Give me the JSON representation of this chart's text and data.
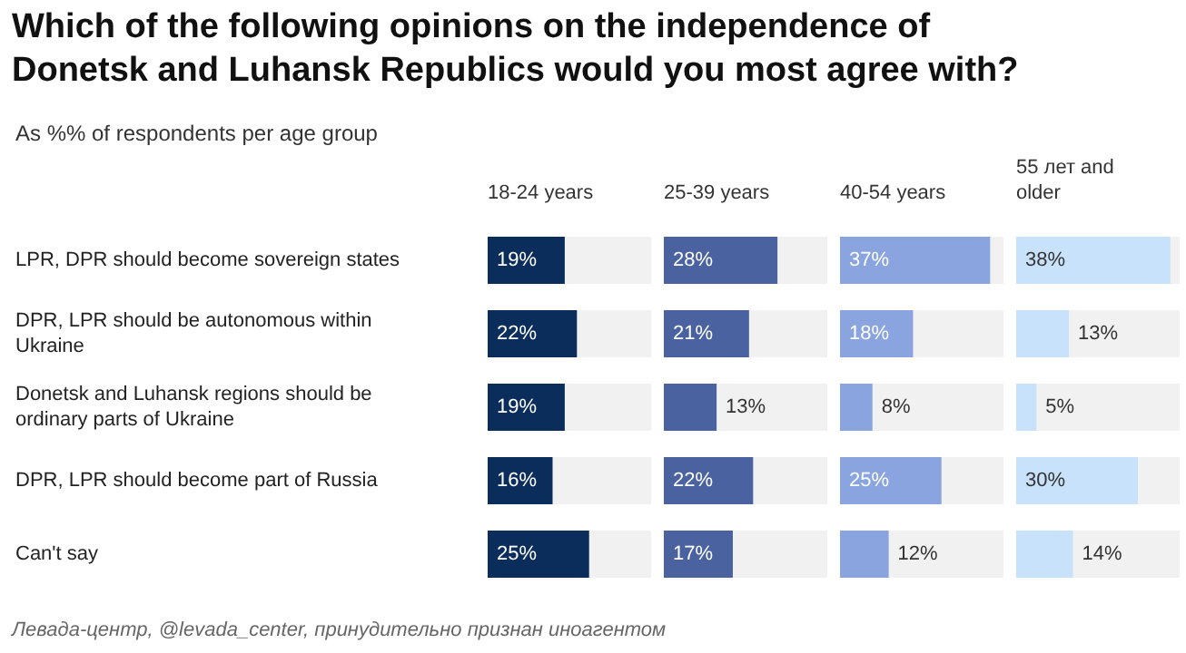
{
  "chart_data": [
    {
      "type": "bar",
      "orientation": "horizontal",
      "title": "Which of the following opinions on the independence of Donetsk and Luhansk Republics would you most agree with?",
      "subtitle": "As %% of respondents per age group",
      "annotations": [
        "Левада-центр, @levada_center, принудительно признан иноагентом"
      ],
      "categories": [
        "LPR, DPR should become sovereign states",
        "DPR, LPR should be autonomous within Ukraine",
        "Donetsk and Luhansk regions should be ordinary parts of Ukraine",
        "DPR, LPR should become part of Russia",
        "Can't say"
      ],
      "series": [
        {
          "name": "18-24 years",
          "color": "#0b2d5b",
          "values": [
            19,
            22,
            19,
            16,
            25
          ],
          "value_labels": [
            "19%",
            "22%",
            "19%",
            "16%",
            "25%"
          ]
        }
      ]
    },
    {
      "type": "bar",
      "orientation": "horizontal",
      "tick_labels": false,
      "categories": [
        "LPR, DPR should become sovereign states",
        "DPR, LPR should be autonomous within Ukraine",
        "Donetsk and Luhansk regions should be ordinary parts of Ukraine",
        "DPR, LPR should become part of Russia",
        "Can't say"
      ],
      "series": [
        {
          "name": "25-39 years",
          "color": "#4a63a0",
          "values": [
            28,
            21,
            13,
            22,
            17
          ],
          "value_labels": [
            "28%",
            "21%",
            "13%",
            "22%",
            "17%"
          ]
        }
      ]
    },
    {
      "type": "bar",
      "orientation": "horizontal",
      "tick_labels": false,
      "categories": [
        "LPR, DPR should become sovereign states",
        "DPR, LPR should be autonomous within Ukraine",
        "Donetsk and Luhansk regions should be ordinary parts of Ukraine",
        "DPR, LPR should become part of Russia",
        "Can't say"
      ],
      "series": [
        {
          "name": "40-54 years",
          "color": "#8aa4e0",
          "values": [
            37,
            18,
            8,
            25,
            12
          ],
          "value_labels": [
            "37%",
            "18%",
            "8%",
            "25%",
            "12%"
          ]
        }
      ]
    },
    {
      "type": "bar",
      "orientation": "horizontal",
      "tick_labels": false,
      "categories": [
        "LPR, DPR should become sovereign states",
        "DPR, LPR should be autonomous within Ukraine",
        "Donetsk and Luhansk regions should be ordinary parts of Ukraine",
        "DPR, LPR should become part of Russia",
        "Can't say"
      ],
      "series": [
        {
          "name": "55 лет and older",
          "color": "#c9e2fb",
          "values": [
            38,
            13,
            5,
            30,
            14
          ],
          "value_labels": [
            "38%",
            "13%",
            "5%",
            "30%",
            "14%"
          ]
        }
      ]
    }
  ]
}
